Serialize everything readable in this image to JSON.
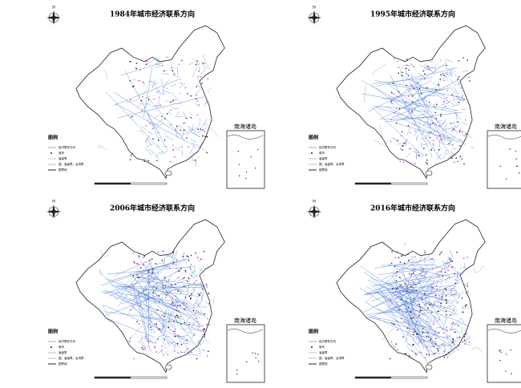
{
  "panels": [
    {
      "title": "1984年城市经济联系方向",
      "north_label": "N",
      "inset_label": "南海诸岛",
      "legend": {
        "title": "图例",
        "items": [
          "经济联系方向",
          "城市",
          "省级界",
          "国、省级界、台湾界",
          "国界线"
        ]
      }
    },
    {
      "title": "1995年城市经济联系方向",
      "north_label": "N",
      "inset_label": "南海诸岛",
      "legend": {
        "title": "图例",
        "items": [
          "经济联系方向",
          "城市",
          "省级界",
          "国、省级界、台湾界",
          "国界线"
        ]
      }
    },
    {
      "title": "2006年城市经济联系方向",
      "north_label": "N",
      "inset_label": "南海诸岛",
      "legend": {
        "title": "图例",
        "items": [
          "经济联系方向",
          "城市",
          "省级界",
          "国、省级界、台湾界",
          "国界线"
        ]
      }
    },
    {
      "title": "2016年城市经济联系方向",
      "north_label": "N",
      "inset_label": "南海诸岛",
      "legend": {
        "title": "图例",
        "items": [
          "经济联系方向",
          "城市",
          "省级界",
          "国、省级界、台湾界",
          "国界线"
        ]
      }
    }
  ]
}
